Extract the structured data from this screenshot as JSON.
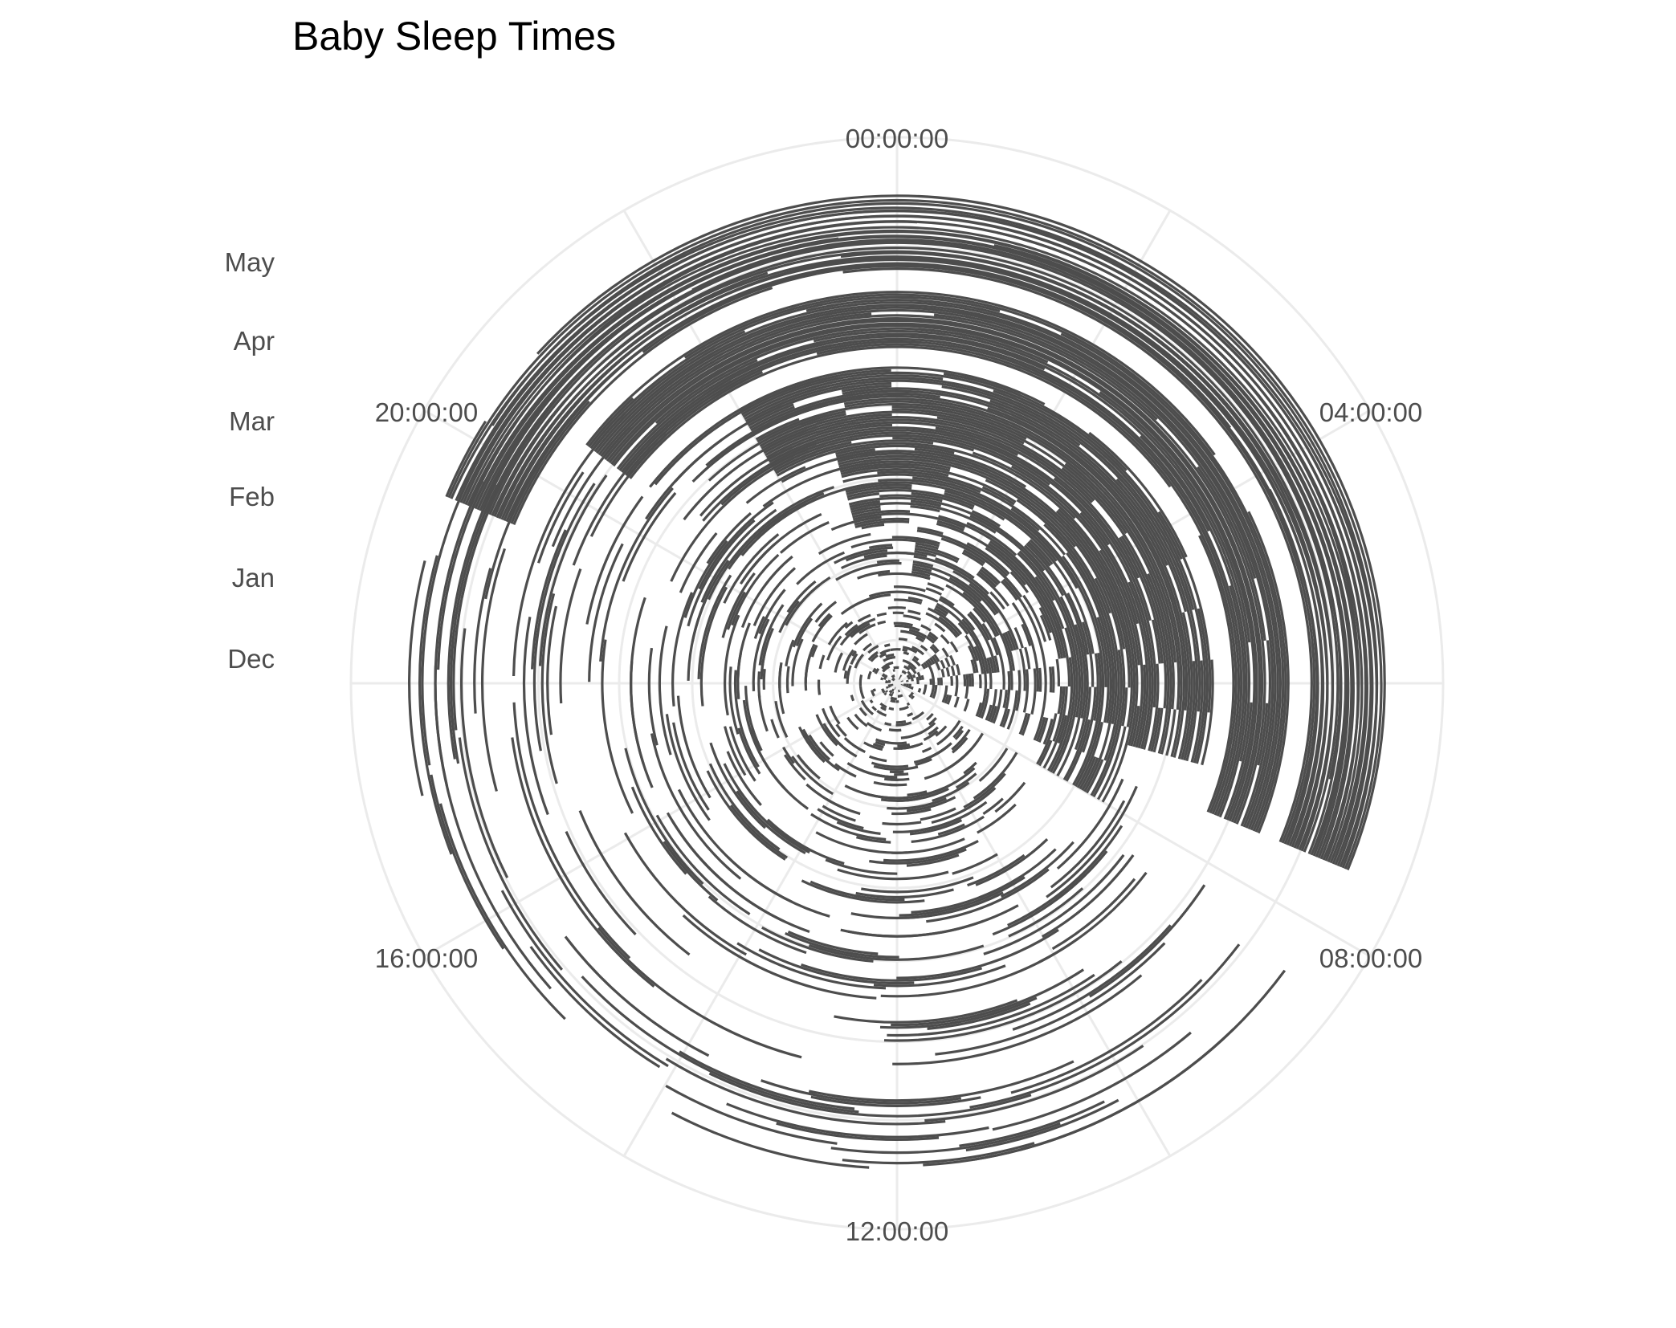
{
  "chart_data": {
    "type": "radial-bar",
    "title": "Baby Sleep Times",
    "xlabel": "",
    "ylabel": "",
    "angular_axis": {
      "unit": "hour of day (clockwise from top)",
      "range": [
        0,
        24
      ],
      "tick_values": [
        0,
        4,
        8,
        12,
        16,
        20
      ],
      "tick_labels": [
        "00:00:00",
        "04:00:00",
        "08:00:00",
        "12:00:00",
        "16:00:00",
        "20:00:00"
      ]
    },
    "radial_axis": {
      "unit": "date (day 0 = centre, 2014-11-16; outward = later)",
      "range_days": [
        0,
        186
      ],
      "gridline_days": [
        15,
        46,
        77,
        105,
        136,
        166
      ],
      "tick_labels": [
        "Dec",
        "Jan",
        "Feb",
        "Mar",
        "Apr",
        "May"
      ]
    },
    "grid": true,
    "legend": "none",
    "colors": {
      "sleep": "#4d4d4d",
      "grid": "#ebebeb",
      "label": "#4d4d4d",
      "title": "#000000"
    },
    "gaps": [
      {
        "name": "missing-data-gap-1",
        "day_range": [
          120,
          126
        ]
      },
      {
        "name": "missing-data-gap-2",
        "day_range": [
          149,
          156
        ]
      }
    ],
    "phases": [
      {
        "day_range": [
          0,
          30
        ],
        "night_sleep": [
          1.5,
          7.5
        ],
        "night_fill": 0.35,
        "nap_count": 10,
        "nap_hours": [
          0.4,
          1.5
        ]
      },
      {
        "day_range": [
          30,
          60
        ],
        "night_sleep": [
          0.5,
          7.5
        ],
        "night_fill": 0.55,
        "nap_count": 8,
        "nap_hours": [
          0.5,
          2.0
        ]
      },
      {
        "day_range": [
          60,
          90
        ],
        "night_sleep": [
          23.0,
          8.0
        ],
        "night_fill": 0.75,
        "nap_count": 5,
        "nap_hours": [
          0.8,
          2.5
        ]
      },
      {
        "day_range": [
          90,
          120
        ],
        "night_sleep": [
          22.0,
          7.0
        ],
        "night_fill": 0.88,
        "nap_count": 4,
        "nap_hours": [
          1.0,
          2.8
        ]
      },
      {
        "day_range": [
          120,
          150
        ],
        "night_sleep": [
          20.5,
          7.5
        ],
        "night_fill": 0.95,
        "nap_count": 3,
        "nap_hours": [
          1.0,
          3.0
        ]
      },
      {
        "day_range": [
          150,
          186
        ],
        "night_sleep": [
          19.5,
          7.5
        ],
        "night_fill": 0.97,
        "nap_count": 3,
        "nap_hours": [
          1.2,
          3.0
        ]
      }
    ]
  }
}
